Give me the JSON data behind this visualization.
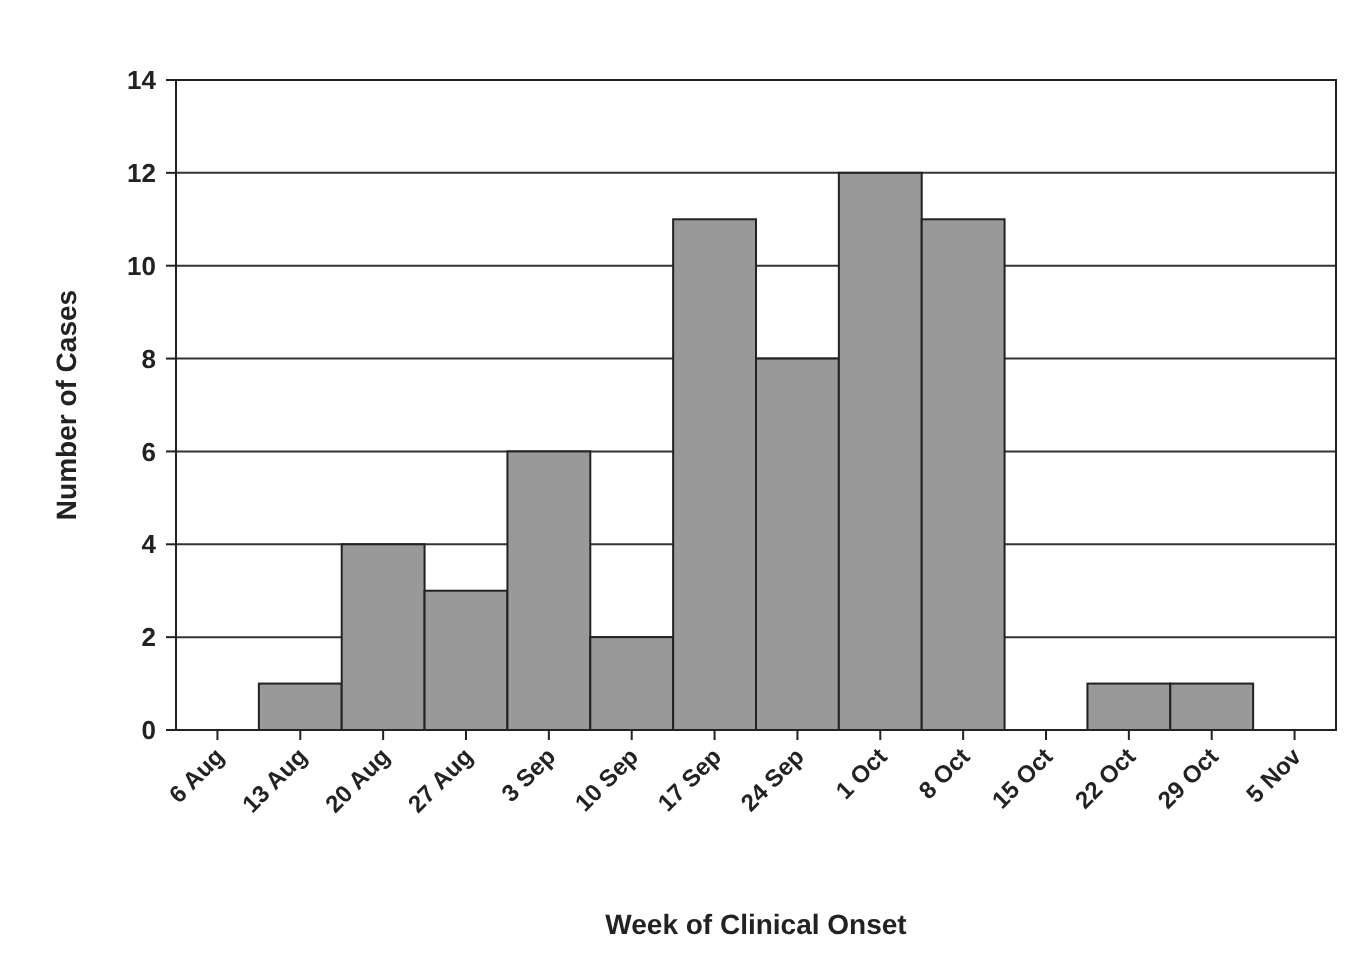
{
  "chart_data": {
    "type": "bar",
    "xlabel": "Week of Clinical Onset",
    "ylabel": "Number of Cases",
    "categories": [
      "6 Aug",
      "13 Aug",
      "20 Aug",
      "27 Aug",
      "3 Sep",
      "10 Sep",
      "17 Sep",
      "24 Sep",
      "1 Oct",
      "8 Oct",
      "15 Oct",
      "22 Oct",
      "29 Oct",
      "5 Nov"
    ],
    "values": [
      0,
      1,
      4,
      3,
      6,
      2,
      11,
      8,
      12,
      11,
      0,
      1,
      1,
      0
    ],
    "color": "#999999",
    "ylim": [
      0,
      14
    ],
    "yticks": [
      0,
      2,
      4,
      6,
      8,
      10,
      12,
      14
    ],
    "grid": "y"
  }
}
